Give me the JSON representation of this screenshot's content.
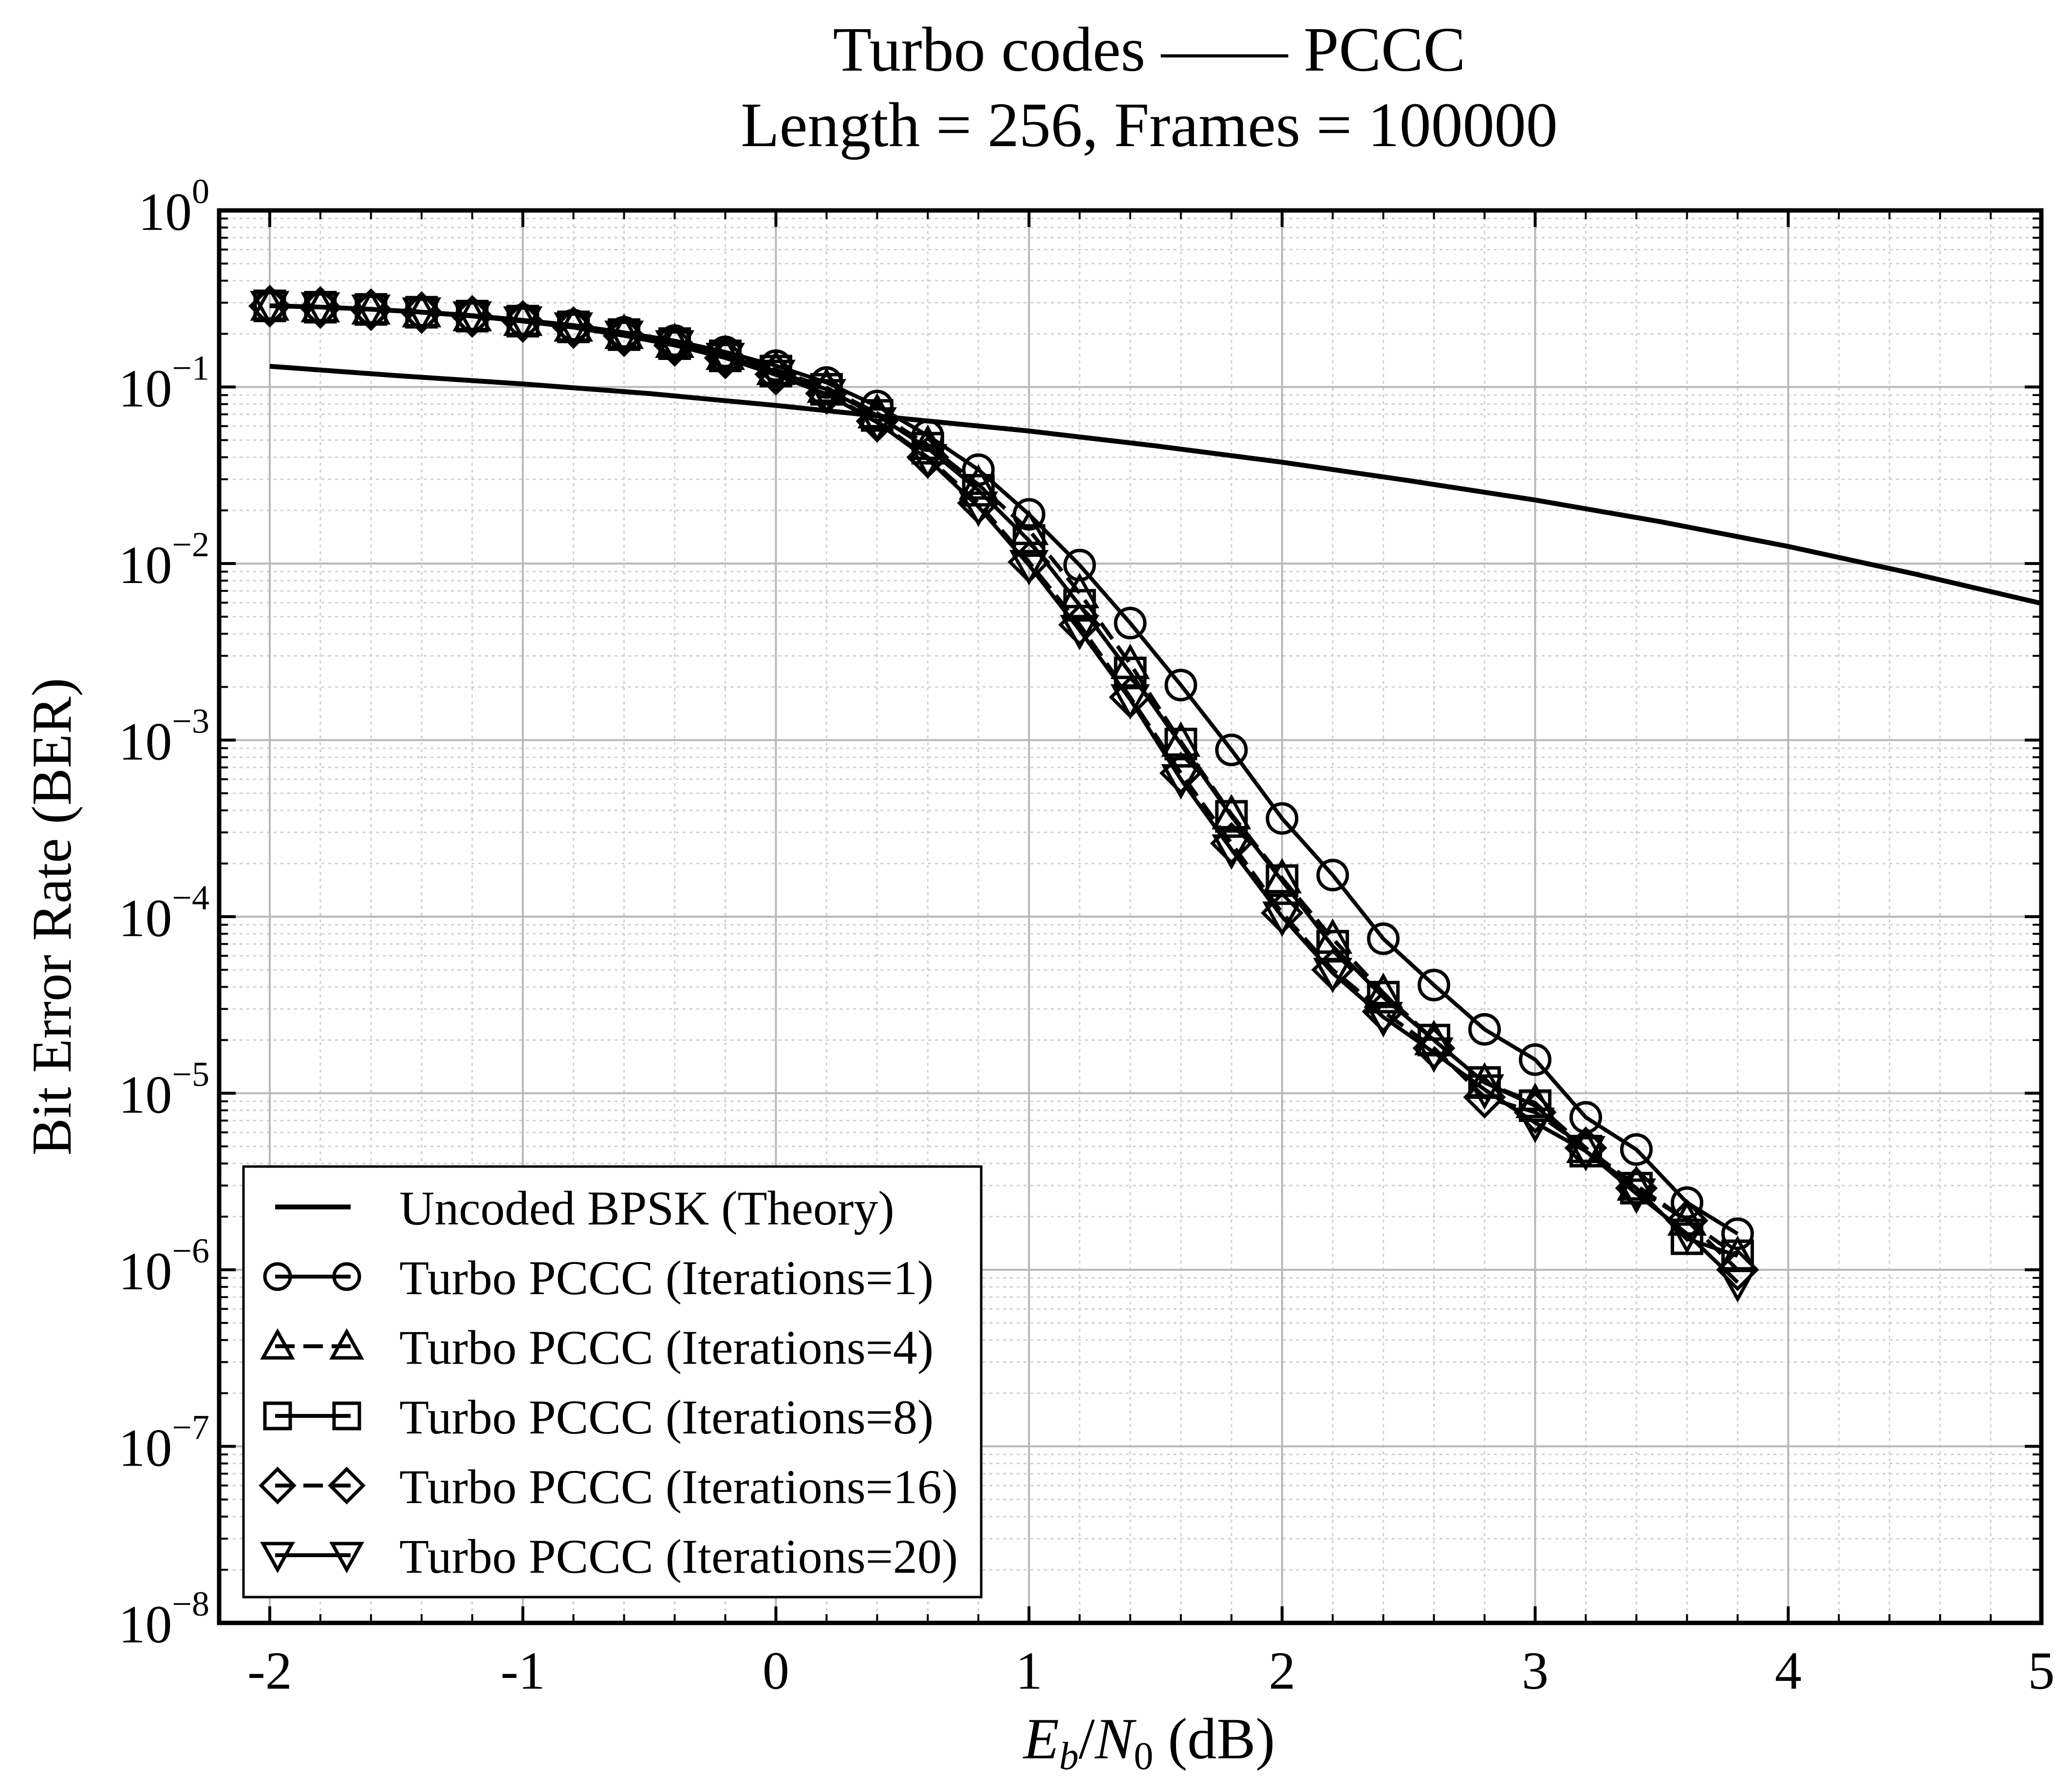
{
  "chart_data": {
    "type": "line",
    "title": "Turbo codes —— PCCC",
    "subtitle": "Length = 256, Frames = 100000",
    "xlabel": {
      "E": "E",
      "b": "b",
      "N": "N",
      "zero": "0",
      "unit": " (dB)"
    },
    "ylabel": "Bit Error Rate (BER)",
    "xlim": [
      -2.2,
      5
    ],
    "ylim": [
      1e-08,
      1
    ],
    "yscale": "log",
    "grid": true,
    "legend_position": "bottom-left",
    "x_ticks": [
      {
        "v": -2,
        "label": "-2"
      },
      {
        "v": -1,
        "label": "-1"
      },
      {
        "v": 0,
        "label": "0"
      },
      {
        "v": 1,
        "label": "1"
      },
      {
        "v": 2,
        "label": "2"
      },
      {
        "v": 3,
        "label": "3"
      },
      {
        "v": 4,
        "label": "4"
      },
      {
        "v": 5,
        "label": "5"
      }
    ],
    "y_ticks": [
      {
        "exp": 0,
        "base": "10",
        "power": "0"
      },
      {
        "exp": -1,
        "base": "10",
        "power": "−1"
      },
      {
        "exp": -2,
        "base": "10",
        "power": "−2"
      },
      {
        "exp": -3,
        "base": "10",
        "power": "−3"
      },
      {
        "exp": -4,
        "base": "10",
        "power": "−4"
      },
      {
        "exp": -5,
        "base": "10",
        "power": "−5"
      },
      {
        "exp": -6,
        "base": "10",
        "power": "−6"
      },
      {
        "exp": -7,
        "base": "10",
        "power": "−7"
      },
      {
        "exp": -8,
        "base": "10",
        "power": "−8"
      }
    ],
    "x": [
      -2.0,
      -1.8,
      -1.6,
      -1.4,
      -1.2,
      -1.0,
      -0.8,
      -0.6,
      -0.4,
      -0.2,
      0.0,
      0.2,
      0.4,
      0.6,
      0.8,
      1.0,
      1.2,
      1.4,
      1.6,
      1.8,
      2.0,
      2.2,
      2.4,
      2.6,
      2.8,
      3.0,
      3.2,
      3.4,
      3.6,
      3.8
    ],
    "series": [
      {
        "name": "Uncoded BPSK (Theory)",
        "marker": "none",
        "dash": "solid",
        "x": [
          -2.0,
          -1.5,
          -1.0,
          -0.5,
          0.0,
          0.5,
          1.0,
          1.5,
          2.0,
          2.5,
          3.0,
          3.5,
          4.0,
          4.5,
          5.0
        ],
        "values": [
          0.131,
          0.116,
          0.104,
          0.0918,
          0.0786,
          0.0663,
          0.0563,
          0.0464,
          0.0375,
          0.0295,
          0.0229,
          0.0172,
          0.0125,
          0.00873,
          0.00595
        ]
      },
      {
        "name": "Turbo PCCC (Iterations=1)",
        "marker": "circle",
        "dash": "solid",
        "values": [
          0.29,
          0.285,
          0.277,
          0.267,
          0.255,
          0.24,
          0.224,
          0.204,
          0.183,
          0.158,
          0.132,
          0.106,
          0.078,
          0.053,
          0.034,
          0.019,
          0.0098,
          0.0046,
          0.00205,
          0.00088,
          0.00036,
          0.000172,
          7.5e-05,
          4.1e-05,
          2.3e-05,
          1.55e-05,
          7.3e-06,
          4.8e-06,
          2.4e-06,
          1.6e-06
        ]
      },
      {
        "name": "Turbo PCCC (Iterations=4)",
        "marker": "triangle-up",
        "dash": "dashed",
        "values": [
          0.289,
          0.283,
          0.275,
          0.265,
          0.252,
          0.237,
          0.22,
          0.2,
          0.178,
          0.152,
          0.125,
          0.099,
          0.071,
          0.047,
          0.028,
          0.0155,
          0.0068,
          0.0027,
          0.00098,
          0.00038,
          0.000165,
          7.5e-05,
          3.7e-05,
          2e-05,
          1.15e-05,
          8.8e-06,
          4.9e-06,
          3e-06,
          1.9e-06,
          1.2e-06
        ]
      },
      {
        "name": "Turbo PCCC (Iterations=8)",
        "marker": "square",
        "dash": "solid",
        "values": [
          0.288,
          0.283,
          0.275,
          0.265,
          0.252,
          0.236,
          0.219,
          0.198,
          0.176,
          0.15,
          0.123,
          0.097,
          0.069,
          0.045,
          0.026,
          0.0135,
          0.0058,
          0.0024,
          0.00095,
          0.00037,
          0.00016,
          6.8e-05,
          3.5e-05,
          2e-05,
          1.15e-05,
          8.5e-06,
          4.7e-06,
          2.9e-06,
          1.5e-06,
          1.2e-06
        ]
      },
      {
        "name": "Turbo PCCC (Iterations=16)",
        "marker": "diamond",
        "dash": "dashed",
        "values": [
          0.287,
          0.282,
          0.274,
          0.264,
          0.251,
          0.235,
          0.217,
          0.195,
          0.172,
          0.146,
          0.118,
          0.092,
          0.064,
          0.04,
          0.022,
          0.0102,
          0.0045,
          0.00175,
          0.00065,
          0.00026,
          0.000105,
          5e-05,
          2.9e-05,
          1.8e-05,
          9.5e-06,
          7.8e-06,
          4.9e-06,
          2.9e-06,
          1.9e-06,
          1e-06
        ]
      },
      {
        "name": "Turbo PCCC (Iterations=20)",
        "marker": "triangle-down",
        "dash": "solid",
        "values": [
          0.287,
          0.282,
          0.274,
          0.264,
          0.251,
          0.235,
          0.217,
          0.195,
          0.172,
          0.146,
          0.117,
          0.091,
          0.063,
          0.039,
          0.021,
          0.0098,
          0.0042,
          0.0017,
          0.0006,
          0.00024,
          0.0001,
          4.8e-05,
          2.7e-05,
          1.7e-05,
          1.05e-05,
          6.8e-06,
          4.7e-06,
          2.7e-06,
          1.6e-06,
          8.5e-07
        ]
      }
    ]
  }
}
